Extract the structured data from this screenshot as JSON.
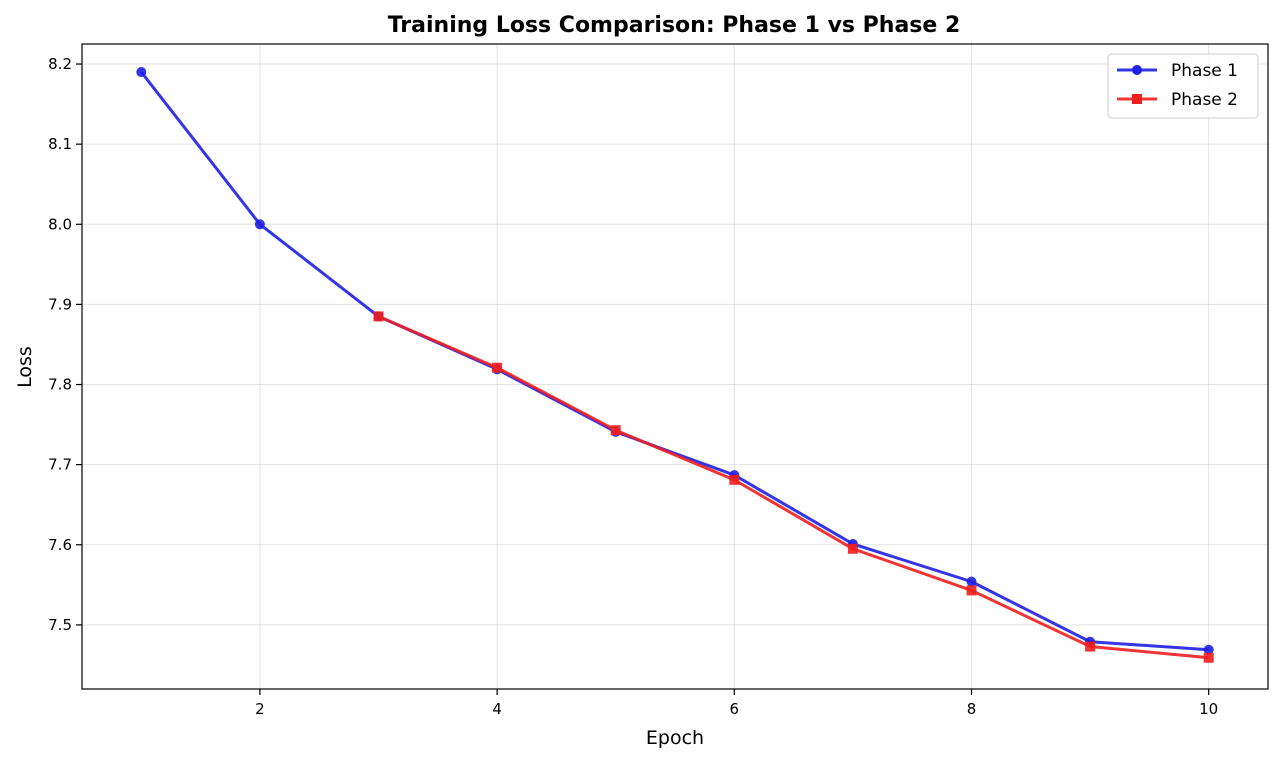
{
  "chart_data": {
    "type": "line",
    "title": "Training Loss Comparison: Phase 1 vs Phase 2",
    "xlabel": "Epoch",
    "ylabel": "Loss",
    "xlim": [
      0.5,
      10.5
    ],
    "ylim": [
      7.42,
      8.225
    ],
    "xticks": [
      2,
      4,
      6,
      8,
      10
    ],
    "xtick_labels": [
      "2",
      "4",
      "6",
      "8",
      "10"
    ],
    "yticks": [
      7.5,
      7.6,
      7.7,
      7.8,
      7.9,
      8.0,
      8.1,
      8.2
    ],
    "ytick_labels": [
      "7.5",
      "7.6",
      "7.7",
      "7.8",
      "7.9",
      "8.0",
      "8.1",
      "8.2"
    ],
    "grid": true,
    "legend_position": "top-right",
    "series": [
      {
        "name": "Phase 1",
        "color": "#1f1fe6",
        "marker": "circle",
        "x": [
          1,
          2,
          3,
          4,
          5,
          6,
          7,
          8,
          9,
          10
        ],
        "y": [
          8.19,
          8.0,
          7.885,
          7.819,
          7.741,
          7.687,
          7.601,
          7.554,
          7.479,
          7.469
        ]
      },
      {
        "name": "Phase 2",
        "color": "#f01f1f",
        "marker": "square",
        "x": [
          3,
          4,
          5,
          6,
          7,
          8,
          9,
          10
        ],
        "y": [
          7.885,
          7.821,
          7.743,
          7.681,
          7.595,
          7.543,
          7.473,
          7.459
        ]
      }
    ]
  }
}
